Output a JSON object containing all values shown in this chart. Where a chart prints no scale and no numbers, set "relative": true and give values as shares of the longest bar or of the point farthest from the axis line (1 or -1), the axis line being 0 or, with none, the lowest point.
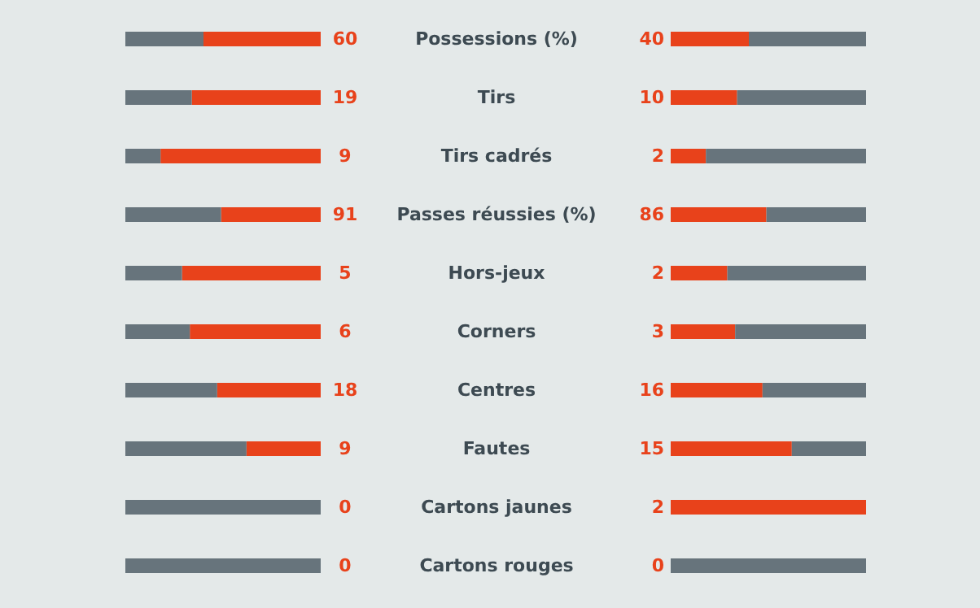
{
  "chart_data": [
    {
      "type": "bar",
      "orientation": "horizontal",
      "stacked": true,
      "relative": true,
      "categories": [
        "Possessions (%)",
        "Tirs",
        "Tirs cadrés",
        "Passes réussies (%)",
        "Hors-jeux",
        "Corners",
        "Centres",
        "Fautes",
        "Cartons jaunes",
        "Cartons rouges"
      ],
      "series": [
        {
          "color": "#e8421b",
          "values": [
            0.6,
            0.66,
            0.82,
            0.51,
            0.71,
            0.67,
            0.53,
            0.38,
            0,
            0
          ]
        },
        {
          "color": "#67747c",
          "values": [
            0.4,
            0.34,
            0.18,
            0.49,
            0.29,
            0.33,
            0.47,
            0.62,
            1,
            1
          ]
        }
      ],
      "annotations": [
        "60",
        "19",
        "9",
        "91",
        "5",
        "6",
        "18",
        "9",
        "0",
        "0"
      ]
    },
    {
      "type": "bar",
      "orientation": "horizontal",
      "stacked": true,
      "relative": true,
      "tick_labels": false,
      "categories": [
        null,
        null,
        null,
        null,
        null,
        null,
        null,
        null,
        null,
        null
      ],
      "series": [
        {
          "color": "#e8421b",
          "values": [
            0.4,
            0.34,
            0.18,
            0.49,
            0.29,
            0.33,
            0.47,
            0.62,
            1,
            0
          ]
        },
        {
          "color": "#67747c",
          "values": [
            0.6,
            0.66,
            0.82,
            0.51,
            0.71,
            0.67,
            0.53,
            0.38,
            0,
            1
          ]
        }
      ],
      "annotations": [
        "40",
        "10",
        "2",
        "86",
        "2",
        "3",
        "16",
        "15",
        "2",
        "0"
      ]
    }
  ]
}
